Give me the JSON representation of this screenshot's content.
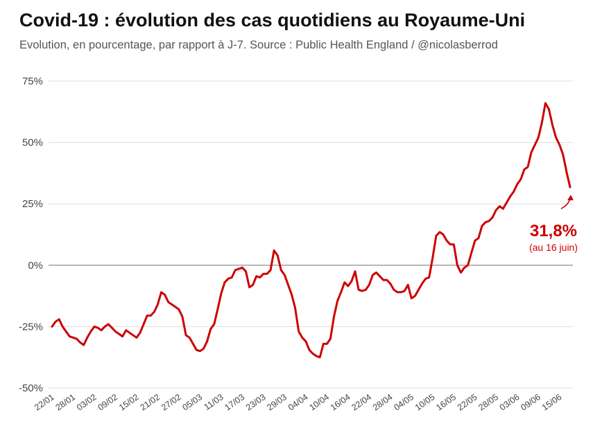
{
  "colors": {
    "line": "#cc0000",
    "grid": "#dddddd",
    "zero": "#999999",
    "text": "#444444"
  },
  "chart_data": {
    "type": "line",
    "title": "Covid-19 : évolution des cas quotidiens au Royaume-Uni",
    "subtitle": "Evolution, en pourcentage, par rapport à J-7. Source : Public Health England / @nicolasberrod",
    "xlabel": "",
    "ylabel": "",
    "ylim": [
      -50,
      75
    ],
    "yticks": [
      -50,
      -25,
      0,
      25,
      50,
      75
    ],
    "ytick_labels": [
      "-50%",
      "-25%",
      "0%",
      "25%",
      "50%",
      "75%"
    ],
    "xtick_labels": [
      "22/01",
      "28/01",
      "03/02",
      "09/02",
      "15/02",
      "21/02",
      "27/02",
      "05/03",
      "11/03",
      "17/03",
      "23/03",
      "29/03",
      "04/04",
      "10/04",
      "16/04",
      "22/04",
      "28/04",
      "04/05",
      "10/05",
      "16/05",
      "22/05",
      "28/05",
      "03/06",
      "09/06",
      "15/06"
    ],
    "xtick_index": [
      0,
      6,
      12,
      18,
      24,
      30,
      36,
      42,
      48,
      54,
      60,
      66,
      72,
      78,
      84,
      90,
      96,
      102,
      108,
      114,
      120,
      126,
      132,
      138,
      144
    ],
    "series": [
      {
        "name": "Evolution J-7 (%)",
        "values": [
          -25,
          -23,
          -22,
          -25,
          -27,
          -29,
          -29.5,
          -30,
          -31.5,
          -32.5,
          -29.5,
          -27,
          -25,
          -25.5,
          -26.5,
          -25,
          -24,
          -25.5,
          -27,
          -28,
          -29,
          -26.5,
          -27.5,
          -28.5,
          -29.5,
          -27.5,
          -24,
          -20.5,
          -20.5,
          -19,
          -16,
          -11,
          -12,
          -15,
          -16,
          -17,
          -18,
          -21,
          -28.5,
          -29.5,
          -32,
          -34.5,
          -35,
          -34,
          -31,
          -26,
          -24,
          -18,
          -11.5,
          -7,
          -5.5,
          -5,
          -2,
          -1.5,
          -1,
          -2.5,
          -9,
          -8,
          -4.5,
          -5,
          -3.5,
          -3.5,
          -2,
          6,
          4,
          -2,
          -4,
          -8,
          -12,
          -17.5,
          -27,
          -29.5,
          -31,
          -34.5,
          -36,
          -37,
          -37.5,
          -32,
          -32,
          -30,
          -21,
          -14.5,
          -11,
          -7,
          -8.5,
          -6.5,
          -2.5,
          -10,
          -10.5,
          -10,
          -8,
          -4,
          -3,
          -4.5,
          -6,
          -6,
          -7.5,
          -10,
          -11,
          -11,
          -10.5,
          -8,
          -13.5,
          -12.5,
          -10,
          -7.5,
          -5.5,
          -5,
          3,
          12,
          13.5,
          12.5,
          10,
          8.5,
          8.5,
          0,
          -3,
          -1,
          0,
          5,
          10,
          11,
          16,
          17.5,
          18,
          19.5,
          22.5,
          24,
          23,
          25.5,
          28,
          30,
          33,
          35,
          39,
          40,
          46,
          49,
          52,
          58,
          66,
          63.5,
          57,
          52,
          49,
          45,
          38,
          31.8
        ]
      }
    ],
    "annotations": [
      {
        "text": "31,8%",
        "x_index": 147,
        "y": 31.8,
        "color": "#cc0000"
      },
      {
        "text": "(au 16 juin)",
        "x_index": 147,
        "y": 31.8,
        "color": "#cc0000"
      }
    ]
  }
}
